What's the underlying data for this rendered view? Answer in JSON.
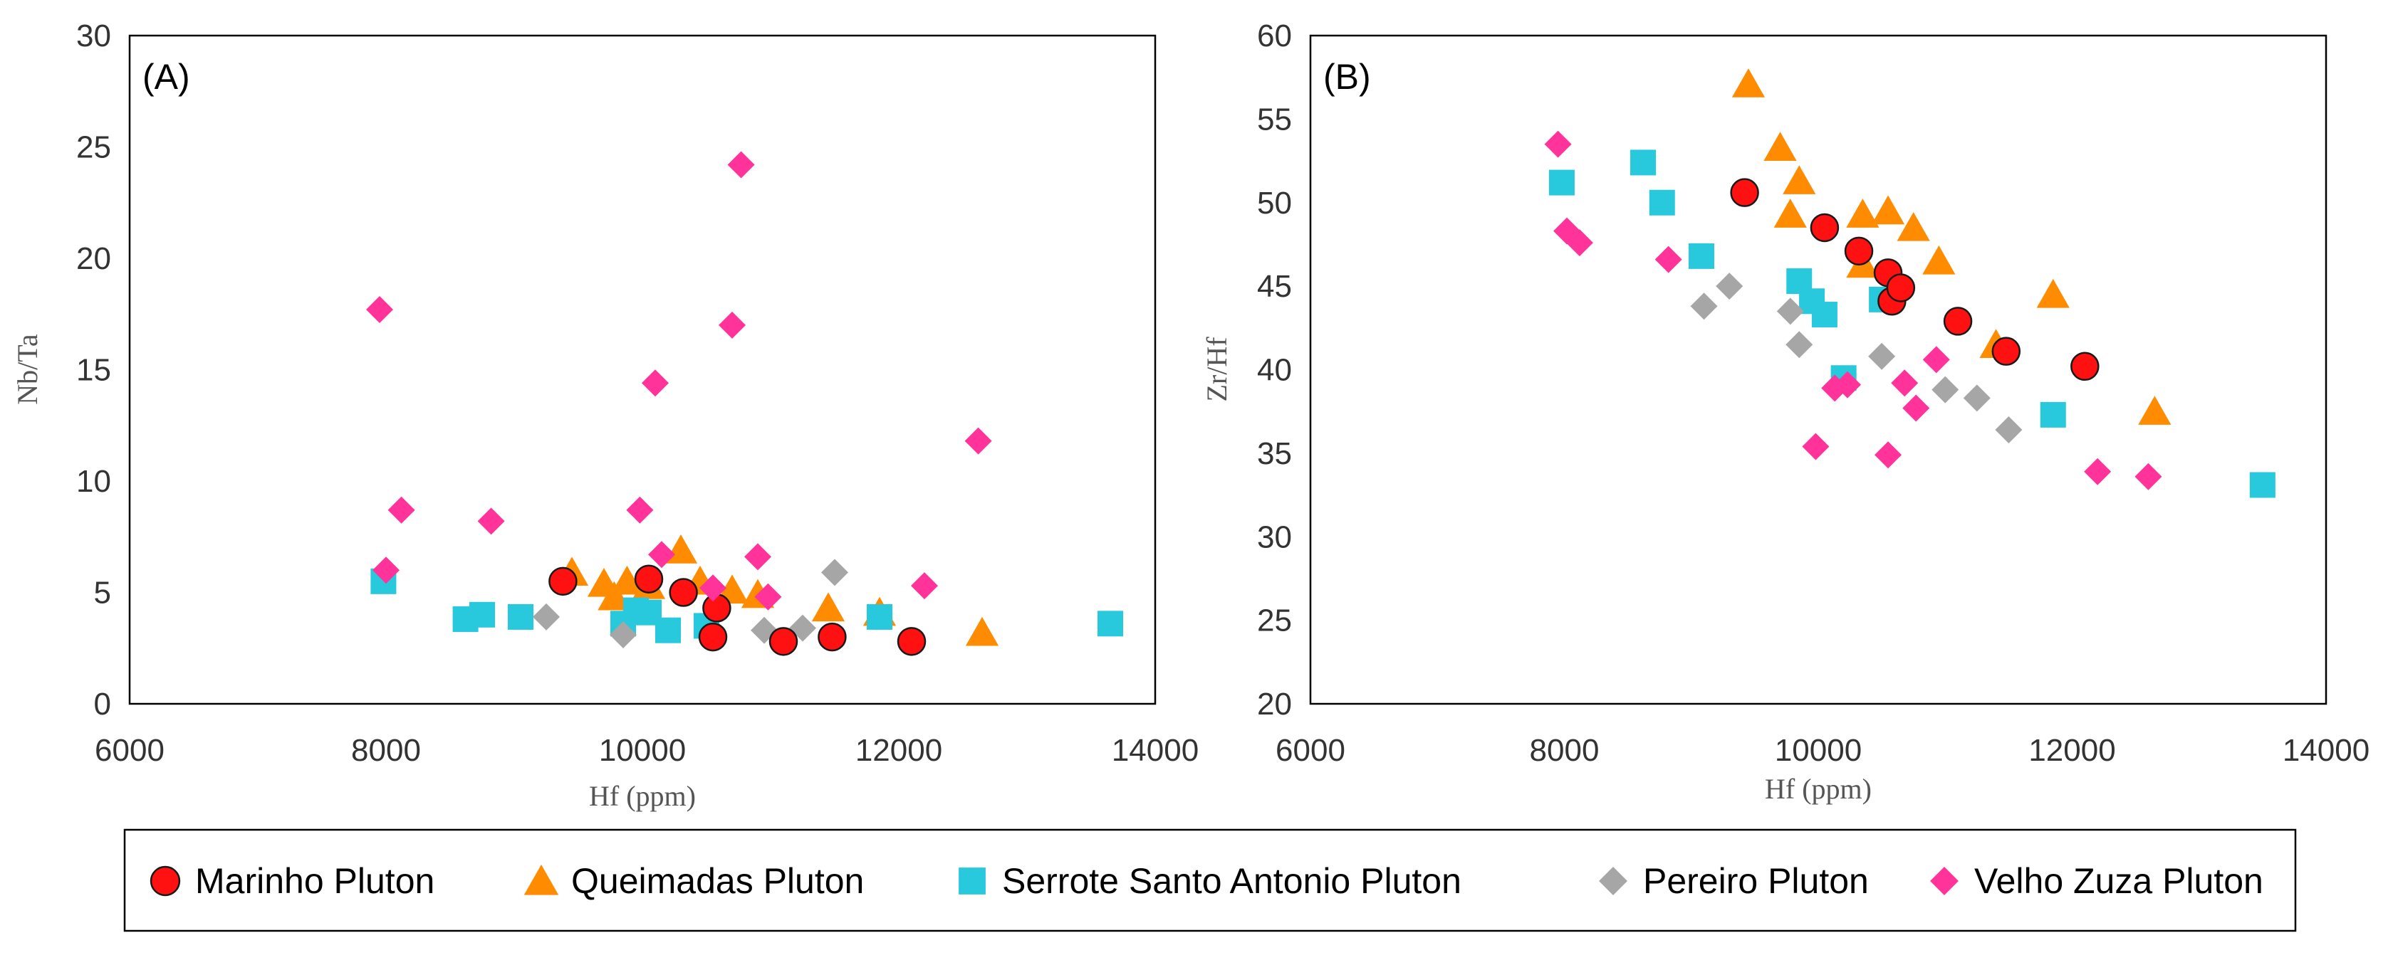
{
  "chart_data": [
    {
      "type": "scatter",
      "panel_label": "(A)",
      "xlabel": "Hf (ppm)",
      "ylabel": "Nb/Ta",
      "xlim": [
        6000,
        14000
      ],
      "ylim": [
        0,
        30
      ],
      "xticks": [
        6000,
        8000,
        10000,
        12000,
        14000
      ],
      "yticks": [
        0,
        5,
        10,
        15,
        20,
        25,
        30
      ],
      "grid": false,
      "series": [
        {
          "name": "Queimadas Pluton",
          "marker": "triangle",
          "points": [
            [
              9450,
              5.9
            ],
            [
              9700,
              5.4
            ],
            [
              9880,
              5.5
            ],
            [
              9780,
              4.8
            ],
            [
              10050,
              5.3
            ],
            [
              10300,
              6.9
            ],
            [
              10450,
              5.5
            ],
            [
              10700,
              5.1
            ],
            [
              10900,
              4.9
            ],
            [
              11450,
              4.3
            ],
            [
              11850,
              4.1
            ],
            [
              12650,
              3.2
            ]
          ]
        },
        {
          "name": "Serrote Santo Antonio Pluton",
          "marker": "square",
          "points": [
            [
              7980,
              5.5
            ],
            [
              8620,
              3.8
            ],
            [
              8750,
              4.0
            ],
            [
              9050,
              3.9
            ],
            [
              9850,
              3.6
            ],
            [
              9950,
              4.2
            ],
            [
              10050,
              4.1
            ],
            [
              10200,
              3.3
            ],
            [
              10500,
              3.5
            ],
            [
              11850,
              3.9
            ],
            [
              13650,
              3.6
            ]
          ]
        },
        {
          "name": "Pereiro Pluton",
          "marker": "diamond",
          "points": [
            [
              9250,
              3.9
            ],
            [
              9850,
              3.1
            ],
            [
              10950,
              3.3
            ],
            [
              11250,
              3.4
            ],
            [
              11500,
              5.9
            ]
          ]
        },
        {
          "name": "Marinho Pluton",
          "marker": "circle",
          "points": [
            [
              9380,
              5.5
            ],
            [
              10050,
              5.6
            ],
            [
              10320,
              5.0
            ],
            [
              10580,
              4.3
            ],
            [
              10550,
              3.0
            ],
            [
              11100,
              2.8
            ],
            [
              11480,
              3.0
            ],
            [
              12100,
              2.8
            ]
          ]
        },
        {
          "name": "Velho Zuza Pluton",
          "marker": "diamond",
          "points": [
            [
              7950,
              17.7
            ],
            [
              8000,
              6.0
            ],
            [
              8120,
              8.7
            ],
            [
              8820,
              8.2
            ],
            [
              9980,
              8.7
            ],
            [
              10100,
              14.4
            ],
            [
              10150,
              6.7
            ],
            [
              10550,
              5.2
            ],
            [
              10700,
              17.0
            ],
            [
              10770,
              24.2
            ],
            [
              10900,
              6.6
            ],
            [
              10980,
              4.8
            ],
            [
              12200,
              5.3
            ],
            [
              12620,
              11.8
            ]
          ]
        }
      ]
    },
    {
      "type": "scatter",
      "panel_label": "(B)",
      "xlabel": "Hf (ppm)",
      "ylabel": "Zr/Hf",
      "xlim": [
        6000,
        14000
      ],
      "ylim": [
        20,
        60
      ],
      "xticks": [
        6000,
        8000,
        10000,
        12000,
        14000
      ],
      "yticks": [
        20,
        25,
        30,
        35,
        40,
        45,
        50,
        55,
        60
      ],
      "grid": false,
      "series": [
        {
          "name": "Queimadas Pluton",
          "marker": "triangle",
          "points": [
            [
              9450,
              57.1
            ],
            [
              9700,
              53.3
            ],
            [
              9850,
              51.3
            ],
            [
              9780,
              49.3
            ],
            [
              10350,
              49.3
            ],
            [
              10550,
              49.5
            ],
            [
              10750,
              48.5
            ],
            [
              10350,
              46.3
            ],
            [
              10950,
              46.5
            ],
            [
              11850,
              44.5
            ],
            [
              11400,
              41.5
            ],
            [
              12650,
              37.5
            ]
          ]
        },
        {
          "name": "Serrote Santo Antonio Pluton",
          "marker": "square",
          "points": [
            [
              7980,
              51.2
            ],
            [
              8620,
              52.4
            ],
            [
              8770,
              50.0
            ],
            [
              9080,
              46.8
            ],
            [
              9850,
              45.3
            ],
            [
              9950,
              44.1
            ],
            [
              10050,
              43.3
            ],
            [
              10500,
              44.2
            ],
            [
              10200,
              39.5
            ],
            [
              11850,
              37.3
            ],
            [
              13500,
              33.1
            ]
          ]
        },
        {
          "name": "Pereiro Pluton",
          "marker": "diamond",
          "points": [
            [
              9100,
              43.8
            ],
            [
              9300,
              45.0
            ],
            [
              9780,
              43.5
            ],
            [
              9850,
              41.5
            ],
            [
              10500,
              40.8
            ],
            [
              11000,
              38.8
            ],
            [
              11250,
              38.3
            ],
            [
              11500,
              36.4
            ]
          ]
        },
        {
          "name": "Marinho Pluton",
          "marker": "circle",
          "points": [
            [
              9420,
              50.6
            ],
            [
              10050,
              48.5
            ],
            [
              10320,
              47.1
            ],
            [
              10550,
              45.8
            ],
            [
              10580,
              44.1
            ],
            [
              10650,
              44.9
            ],
            [
              11100,
              42.9
            ],
            [
              11480,
              41.1
            ],
            [
              12100,
              40.2
            ]
          ]
        },
        {
          "name": "Velho Zuza Pluton",
          "marker": "diamond",
          "points": [
            [
              7950,
              53.5
            ],
            [
              8020,
              48.3
            ],
            [
              8120,
              47.6
            ],
            [
              8820,
              46.6
            ],
            [
              9980,
              35.4
            ],
            [
              10130,
              38.9
            ],
            [
              10230,
              39.1
            ],
            [
              10550,
              34.9
            ],
            [
              10680,
              39.2
            ],
            [
              10770,
              37.7
            ],
            [
              10930,
              40.6
            ],
            [
              12200,
              33.9
            ],
            [
              12600,
              33.6
            ]
          ]
        }
      ]
    }
  ],
  "legend": {
    "items": [
      {
        "label": "Marinho Pluton",
        "marker": "circle",
        "color": "#ff1111"
      },
      {
        "label": "Queimadas Pluton",
        "marker": "triangle",
        "color": "#ff8c00"
      },
      {
        "label": "Serrote Santo Antonio Pluton",
        "marker": "square",
        "color": "#28c9dc"
      },
      {
        "label": "Pereiro Pluton",
        "marker": "diamond",
        "color": "#a6a6a6"
      },
      {
        "label": "Velho Zuza Pluton",
        "marker": "diamond",
        "color": "#ff3399"
      }
    ]
  },
  "series_colors": {
    "Marinho Pluton": "#ff1111",
    "Queimadas Pluton": "#ff8c00",
    "Serrote Santo Antonio Pluton": "#28c9dc",
    "Pereiro Pluton": "#a6a6a6",
    "Velho Zuza Pluton": "#ff3399"
  }
}
